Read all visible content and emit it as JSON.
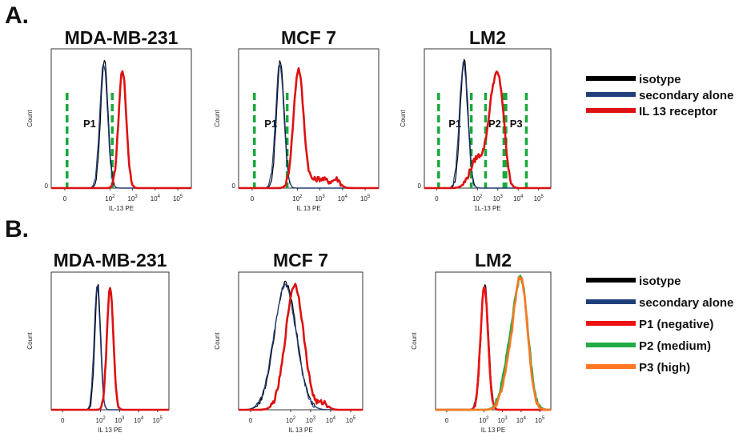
{
  "figure": {
    "panel_a_label": "A.",
    "panel_b_label": "B."
  },
  "legends": [
    {
      "entries": [
        {
          "label": "isotype",
          "color": "#000000"
        },
        {
          "label": "secondary alone",
          "color": "#1f3f7a"
        },
        {
          "label": "IL 13 receptor",
          "color": "#dd1111"
        }
      ]
    },
    {
      "entries": [
        {
          "label": "isotype",
          "color": "#000000"
        },
        {
          "label": "secondary alone",
          "color": "#1f3f7a"
        },
        {
          "label": "P1 (negative)",
          "color": "#ee1111"
        },
        {
          "label": "P2 (medium)",
          "color": "#22aa44"
        },
        {
          "label": "P3 (high)",
          "color": "#ff7722"
        }
      ]
    }
  ],
  "chart_data": [
    {
      "type": "line",
      "panel": "A",
      "title": "MDA-MB-231",
      "xlabel": "IL-13 PE",
      "ylabel": "Count",
      "x_tick_labels": [
        "0",
        "10^2",
        "10^3",
        "10^4",
        "10^5"
      ],
      "y_tick_labels": [
        "0"
      ],
      "series": [
        {
          "name": "isotype",
          "peaks": [
            {
              "center": 1.75,
              "width": 0.16,
              "height": 0.95
            }
          ]
        },
        {
          "name": "secondary alone",
          "peaks": [
            {
              "center": 1.72,
              "width": 0.17,
              "height": 0.93
            }
          ]
        },
        {
          "name": "IL 13 receptor",
          "peaks": [
            {
              "center": 2.55,
              "width": 0.17,
              "height": 0.88
            }
          ]
        }
      ],
      "gates": [
        {
          "label": "P1",
          "from": 0.1,
          "to": 2.1
        }
      ]
    },
    {
      "type": "line",
      "panel": "A",
      "title": "MCF 7",
      "xlabel": "IL 13 PE",
      "ylabel": "Count",
      "x_tick_labels": [
        "0",
        "10^2",
        "10^3",
        "10^4",
        "10^5"
      ],
      "y_tick_labels": [
        "0"
      ],
      "series": [
        {
          "name": "isotype",
          "peaks": [
            {
              "center": 1.25,
              "width": 0.17,
              "height": 0.95
            }
          ]
        },
        {
          "name": "secondary alone",
          "peaks": [
            {
              "center": 1.22,
              "width": 0.18,
              "height": 0.93
            }
          ]
        },
        {
          "name": "IL 13 receptor",
          "peaks": [
            {
              "center": 2.05,
              "width": 0.22,
              "height": 0.88
            },
            {
              "center": 3.0,
              "width": 0.45,
              "height": 0.07
            },
            {
              "center": 3.75,
              "width": 0.15,
              "height": 0.05
            }
          ]
        }
      ],
      "gates": [
        {
          "label": "P1",
          "from": 0.1,
          "to": 1.55
        }
      ]
    },
    {
      "type": "line",
      "panel": "A",
      "title": "LM2",
      "xlabel": "1L-13 PE",
      "ylabel": "Count",
      "x_tick_labels": [
        "0",
        "10^2",
        "10^3",
        "10^4",
        "10^5"
      ],
      "y_tick_labels": [
        "0"
      ],
      "series": [
        {
          "name": "isotype",
          "peaks": [
            {
              "center": 1.35,
              "width": 0.19,
              "height": 0.95
            }
          ]
        },
        {
          "name": "secondary alone",
          "peaks": [
            {
              "center": 1.32,
              "width": 0.2,
              "height": 0.93
            }
          ]
        },
        {
          "name": "IL 13 receptor",
          "peaks": [
            {
              "center": 2.0,
              "width": 0.35,
              "height": 0.22
            },
            {
              "center": 2.85,
              "width": 0.3,
              "height": 0.75
            },
            {
              "center": 3.2,
              "width": 0.2,
              "height": 0.3
            }
          ]
        }
      ],
      "gates": [
        {
          "label": "P1",
          "from": 0.1,
          "to": 1.7
        },
        {
          "label": "P2",
          "from": 2.4,
          "to": 3.3
        },
        {
          "label": "P3",
          "from": 3.4,
          "to": 4.4
        }
      ]
    },
    {
      "type": "line",
      "panel": "B",
      "title": "MDA-MB-231",
      "xlabel": "IL 13 PE",
      "ylabel": "Count",
      "x_tick_labels": [
        "0",
        "10^2",
        "10^3",
        "10^4",
        "10^5"
      ],
      "y_tick_labels": [],
      "series": [
        {
          "name": "isotype",
          "peaks": [
            {
              "center": 1.85,
              "width": 0.15,
              "height": 0.95
            }
          ]
        },
        {
          "name": "secondary alone",
          "peaks": [
            {
              "center": 1.82,
              "width": 0.16,
              "height": 0.93
            }
          ]
        },
        {
          "name": "IL 13 receptor",
          "peaks": [
            {
              "center": 2.5,
              "width": 0.17,
              "height": 0.92
            }
          ]
        }
      ]
    },
    {
      "type": "line",
      "panel": "B",
      "title": "MCF 7",
      "xlabel": "IL 13 PE",
      "ylabel": "Count",
      "x_tick_labels": [
        "0",
        "10^2",
        "10^3",
        "10^4",
        "10^5"
      ],
      "y_tick_labels": [],
      "series": [
        {
          "name": "isotype",
          "peaks": [
            {
              "center": 1.75,
              "width": 0.55,
              "height": 0.95
            }
          ]
        },
        {
          "name": "secondary alone",
          "peaks": [
            {
              "center": 1.72,
              "width": 0.56,
              "height": 0.93
            }
          ]
        },
        {
          "name": "IL 13 receptor",
          "peaks": [
            {
              "center": 2.2,
              "width": 0.45,
              "height": 0.94
            },
            {
              "center": 3.65,
              "width": 0.22,
              "height": 0.05
            }
          ]
        }
      ]
    },
    {
      "type": "line",
      "panel": "B",
      "title": "LM2",
      "xlabel": "IL 13 PE",
      "ylabel": "Count",
      "x_tick_labels": [
        "0",
        "10^2",
        "10^3",
        "10^4",
        "10^5"
      ],
      "y_tick_labels": [],
      "series": [
        {
          "name": "isotype",
          "peaks": [
            {
              "center": 2.05,
              "width": 0.2,
              "height": 0.95
            }
          ]
        },
        {
          "name": "secondary alone",
          "peaks": [
            {
              "center": 2.02,
              "width": 0.21,
              "height": 0.93
            }
          ]
        },
        {
          "name": "P1 (negative)",
          "peaks": [
            {
              "center": 2.02,
              "width": 0.2,
              "height": 0.93
            }
          ]
        },
        {
          "name": "P2 (medium)",
          "peaks": [
            {
              "center": 4.0,
              "width": 0.38,
              "height": 0.95
            },
            {
              "center": 3.3,
              "width": 0.35,
              "height": 0.3
            }
          ]
        },
        {
          "name": "P3 (high)",
          "peaks": [
            {
              "center": 4.0,
              "width": 0.35,
              "height": 0.96
            },
            {
              "center": 3.35,
              "width": 0.35,
              "height": 0.27
            }
          ]
        }
      ]
    }
  ]
}
